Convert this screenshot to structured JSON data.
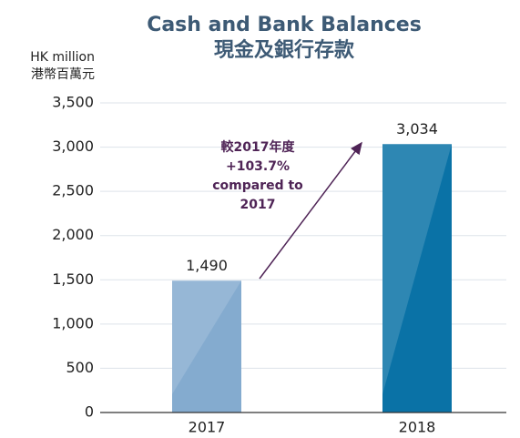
{
  "chart_data": {
    "type": "bar",
    "title": "Cash and Bank Balances",
    "subtitle": "現金及銀行存款",
    "y_label": [
      "HK million",
      "港幣百萬元"
    ],
    "categories": [
      "2017",
      "2018"
    ],
    "values": [
      1490,
      3034
    ],
    "value_labels": [
      "1,490",
      "3,034"
    ],
    "colors": [
      "#84abcf",
      "#0a72a6"
    ],
    "annotation": [
      "較2017年度",
      "+103.7%",
      "compared to",
      "2017"
    ],
    "annotation_color": "#4f2456",
    "ylim": [
      0,
      3500
    ],
    "yticks": [
      0,
      500,
      {
        "value": 1000,
        "label": "1,000"
      },
      {
        "value": 1500,
        "label": "1,500"
      },
      {
        "value": 2000,
        "label": "2,000"
      },
      {
        "value": 2500,
        "label": "2,500"
      },
      {
        "value": 3000,
        "label": "3,000"
      },
      {
        "value": 3500,
        "label": "3,500"
      }
    ],
    "grid": true
  }
}
